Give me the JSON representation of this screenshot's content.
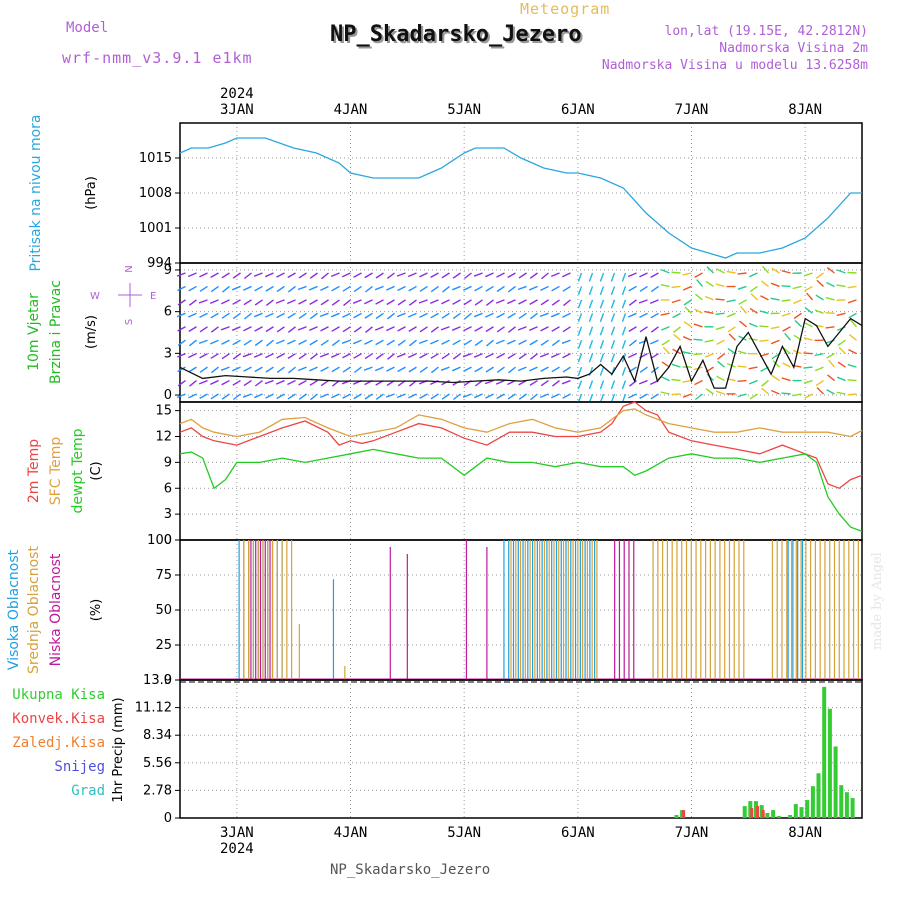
{
  "header": {
    "model_label": "Model",
    "model_version": "wrf-nmm_v3.9.1 e1km",
    "meteogram_label": "Meteogram",
    "title": "NP_Skadarsko_Jezero",
    "lonlat": "lon,lat (19.15E, 42.2812N)",
    "altitude": "Nadmorska Visina 2m",
    "model_altitude": "Nadmorska Visina u modelu 13.6258m"
  },
  "footer": {
    "station": "NP_Skadarsko_Jezero",
    "credit": "made by Angel"
  },
  "colors": {
    "pressure": "#2aa6e0",
    "temp2m": "#ee4444",
    "sfc": "#e0a040",
    "dew": "#22cc22",
    "high_cloud": "#1fa0e0",
    "mid_cloud": "#d6a23a",
    "low_cloud": "#c0189a",
    "precip_total": "#33cc33",
    "precip_conv": "#ee4444",
    "precip_frozen": "#f08030",
    "snow": "#5050e0",
    "graupel": "#30c0c0",
    "wind_label": "#22bb22"
  },
  "chart_data": [
    {
      "type": "line",
      "panel": "pressure",
      "ylabel_name": "Pritisak na nivou mora",
      "ylabel_unit": "(hPa)",
      "ylim": [
        994,
        1022
      ],
      "yticks": [
        "1015",
        "1008",
        "1001",
        "994"
      ],
      "ytick_values": [
        1015,
        1008,
        1001,
        994
      ],
      "top_ticks": [
        "3JAN",
        "4JAN",
        "5JAN",
        "6JAN",
        "7JAN",
        "8JAN"
      ],
      "top_year": "2024",
      "series": [
        {
          "x": [
            2.5,
            2.6,
            2.75,
            2.9,
            3.0,
            3.1,
            3.25,
            3.5,
            3.7,
            3.9,
            4.0,
            4.2,
            4.4,
            4.6,
            4.8,
            5.0,
            5.1,
            5.2,
            5.35,
            5.5,
            5.7,
            5.9,
            6.0,
            6.2,
            6.4,
            6.6,
            6.8,
            7.0,
            7.15,
            7.3,
            7.4,
            7.6,
            7.8,
            8.0,
            8.2,
            8.4,
            8.5
          ],
          "values": [
            1016,
            1017,
            1017,
            1018,
            1019,
            1019,
            1019,
            1017,
            1016,
            1014,
            1012,
            1011,
            1011,
            1011,
            1013,
            1016,
            1017,
            1017,
            1017,
            1015,
            1013,
            1012,
            1012,
            1011,
            1009,
            1004,
            1000,
            997,
            996,
            995,
            996,
            996,
            997,
            999,
            1003,
            1008,
            1008
          ]
        }
      ]
    },
    {
      "type": "barbs",
      "panel": "wind",
      "ylabel_name": "10m Vjetar",
      "ylabel_name2": "Brzina i Pravac",
      "ylabel_unit": "(m/s)",
      "compass": [
        "N",
        "S",
        "W",
        "E"
      ],
      "ylim": [
        -0.5,
        9.5
      ],
      "yticks": [
        "9",
        "6",
        "3",
        "0"
      ],
      "ytick_values": [
        9,
        6,
        3,
        0
      ],
      "speed": {
        "x": [
          2.5,
          2.7,
          2.9,
          3.1,
          3.3,
          3.5,
          3.7,
          3.9,
          4.1,
          4.3,
          4.5,
          4.7,
          4.9,
          5.1,
          5.3,
          5.5,
          5.7,
          5.9,
          6.0,
          6.1,
          6.2,
          6.3,
          6.4,
          6.5,
          6.6,
          6.7,
          6.8,
          6.9,
          7.0,
          7.1,
          7.2,
          7.3,
          7.4,
          7.5,
          7.6,
          7.7,
          7.8,
          7.9,
          8.0,
          8.1,
          8.2,
          8.3,
          8.4,
          8.5
        ],
        "values": [
          2.0,
          1.2,
          1.4,
          1.3,
          1.2,
          1.2,
          1.1,
          1.0,
          1.0,
          1.0,
          1.0,
          1.0,
          0.9,
          1.0,
          1.1,
          1.0,
          1.2,
          1.3,
          1.2,
          1.5,
          2.2,
          1.5,
          2.8,
          1.0,
          4.2,
          1.0,
          2.0,
          3.5,
          1.0,
          2.5,
          0.5,
          0.5,
          3.5,
          4.5,
          3.0,
          1.5,
          3.5,
          2.0,
          5.5,
          5.0,
          3.5,
          4.5,
          5.5,
          5.0
        ]
      }
    },
    {
      "type": "line",
      "panel": "temperature",
      "ylabel_name": "2m Temp",
      "ylabel_name2": "SFC Temp",
      "ylabel_name3": "dewpt Temp",
      "ylabel_unit": "(C)",
      "ylim": [
        0,
        16
      ],
      "yticks": [
        "15",
        "12",
        "9",
        "6",
        "3",
        "0"
      ],
      "ytick_values": [
        15,
        12,
        9,
        6,
        3,
        0
      ],
      "series": [
        {
          "key": "temp2m",
          "x": [
            2.5,
            2.6,
            2.7,
            2.8,
            3.0,
            3.2,
            3.4,
            3.6,
            3.8,
            3.9,
            4.0,
            4.1,
            4.2,
            4.4,
            4.6,
            4.8,
            5.0,
            5.2,
            5.4,
            5.6,
            5.8,
            6.0,
            6.2,
            6.3,
            6.4,
            6.5,
            6.6,
            6.7,
            6.8,
            6.9,
            7.0,
            7.2,
            7.4,
            7.6,
            7.8,
            8.0,
            8.1,
            8.2,
            8.3,
            8.4,
            8.5
          ],
          "values": [
            12.5,
            13.0,
            12.0,
            11.5,
            11.0,
            12.0,
            13.0,
            13.8,
            12.5,
            11.0,
            11.5,
            11.2,
            11.5,
            12.5,
            13.5,
            13.0,
            11.8,
            11.0,
            12.5,
            12.5,
            12.0,
            12.0,
            12.5,
            13.5,
            15.5,
            16.0,
            15.0,
            14.5,
            12.5,
            12.0,
            11.5,
            11.0,
            10.5,
            10.0,
            11.0,
            10.0,
            9.5,
            6.5,
            6.0,
            7.0,
            7.5
          ]
        },
        {
          "key": "sfc",
          "x": [
            2.5,
            2.6,
            2.7,
            2.8,
            3.0,
            3.2,
            3.4,
            3.6,
            3.8,
            4.0,
            4.2,
            4.4,
            4.6,
            4.8,
            5.0,
            5.2,
            5.4,
            5.6,
            5.8,
            6.0,
            6.2,
            6.4,
            6.5,
            6.6,
            6.8,
            7.0,
            7.2,
            7.4,
            7.6,
            7.8,
            8.0,
            8.2,
            8.4,
            8.5
          ],
          "values": [
            13.5,
            14.0,
            13.0,
            12.5,
            12.0,
            12.5,
            14.0,
            14.2,
            13.0,
            12.0,
            12.5,
            13.0,
            14.5,
            14.0,
            13.0,
            12.5,
            13.5,
            14.0,
            13.0,
            12.5,
            13.0,
            15.0,
            15.2,
            14.5,
            13.5,
            13.0,
            12.5,
            12.5,
            13.0,
            12.5,
            12.5,
            12.5,
            12.0,
            12.7
          ]
        },
        {
          "key": "dew",
          "x": [
            2.5,
            2.6,
            2.7,
            2.8,
            2.9,
            3.0,
            3.2,
            3.4,
            3.6,
            3.8,
            4.0,
            4.2,
            4.4,
            4.6,
            4.8,
            5.0,
            5.1,
            5.2,
            5.4,
            5.6,
            5.8,
            6.0,
            6.2,
            6.4,
            6.5,
            6.6,
            6.8,
            7.0,
            7.2,
            7.4,
            7.6,
            7.8,
            8.0,
            8.1,
            8.2,
            8.3,
            8.4,
            8.5
          ],
          "values": [
            10.0,
            10.2,
            9.5,
            6.0,
            7.0,
            9.0,
            9.0,
            9.5,
            9.0,
            9.5,
            10.0,
            10.5,
            10.0,
            9.5,
            9.5,
            7.5,
            8.5,
            9.5,
            9.0,
            9.0,
            8.5,
            9.0,
            8.5,
            8.5,
            7.5,
            8.0,
            9.5,
            10.0,
            9.5,
            9.5,
            9.0,
            9.5,
            10.0,
            9.0,
            5.0,
            3.0,
            1.5,
            1.0
          ]
        }
      ]
    },
    {
      "type": "bar",
      "panel": "cloud",
      "ylabel_name": "Visoka Oblacnost",
      "ylabel_name2": "Srednja Oblacnost",
      "ylabel_name3": "Niska Oblacnost",
      "ylabel_unit": "(%)",
      "ylim": [
        0,
        100
      ],
      "yticks": [
        "100",
        "75",
        "50",
        "25",
        "0"
      ],
      "ytick_values": [
        100,
        75,
        50,
        25,
        0
      ],
      "series": [
        {
          "key": "high_cloud",
          "segments": [
            [
              3.02,
              3.4
            ],
            [
              5.35,
              6.15
            ],
            [
              7.85,
              8.0
            ]
          ],
          "singles": [
            [
              3.85,
              72
            ]
          ]
        },
        {
          "key": "mid_cloud",
          "segments": [
            [
              3.05,
              3.5
            ],
            [
              5.4,
              6.2
            ],
            [
              6.65,
              7.5
            ],
            [
              7.7,
              8.5
            ]
          ],
          "singles": [
            [
              3.55,
              40
            ],
            [
              3.95,
              10
            ]
          ]
        },
        {
          "key": "low_cloud",
          "segments": [
            [
              3.1,
              3.3
            ],
            [
              6.3,
              6.5
            ]
          ],
          "singles": [
            [
              4.35,
              95
            ],
            [
              4.5,
              90
            ],
            [
              5.02,
              100
            ],
            [
              5.2,
              95
            ]
          ]
        }
      ]
    },
    {
      "type": "bar",
      "panel": "precip",
      "ylabel_unit": "1hr Precip (mm)",
      "legend": [
        "Ukupna Kisa",
        "Konvek.Kisa",
        "Zaledj.Kisa",
        "Snijeg",
        "Grad"
      ],
      "ylim": [
        0,
        13.9
      ],
      "yticks": [
        "13.9",
        "11.12",
        "8.34",
        "5.56",
        "2.78",
        "0"
      ],
      "ytick_values": [
        13.9,
        11.12,
        8.34,
        5.56,
        2.78,
        0
      ],
      "xticks": [
        "3JAN",
        "4JAN",
        "5JAN",
        "6JAN",
        "7JAN",
        "8JAN"
      ],
      "x_year": "2024",
      "series": [
        {
          "key": "precip_total",
          "x": [
            6.85,
            6.9,
            7.45,
            7.5,
            7.55,
            7.6,
            7.65,
            7.7,
            7.75,
            7.85,
            7.9,
            7.95,
            8.0,
            8.05,
            8.1,
            8.15,
            8.2,
            8.25,
            8.3,
            8.35,
            8.4
          ],
          "values": [
            0.3,
            0.8,
            1.2,
            1.7,
            1.7,
            1.3,
            0.5,
            0.8,
            0.2,
            0.3,
            1.4,
            1.1,
            1.8,
            3.2,
            4.5,
            13.2,
            11.0,
            7.2,
            3.3,
            2.6,
            2.0
          ]
        },
        {
          "key": "precip_conv",
          "x": [
            6.9,
            7.5,
            7.55,
            7.6
          ],
          "values": [
            0.8,
            1.0,
            1.2,
            0.8
          ]
        }
      ]
    }
  ]
}
